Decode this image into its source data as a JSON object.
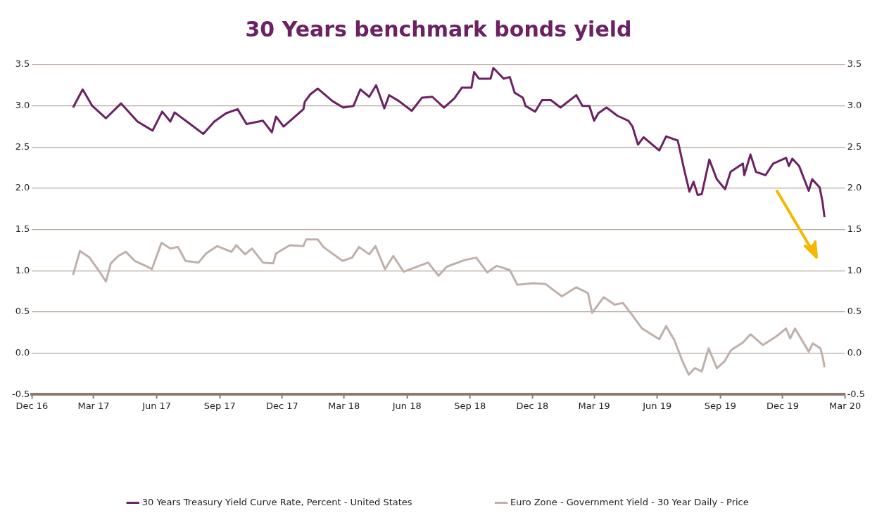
{
  "chart_data": {
    "type": "line",
    "title": "30 Years benchmark bonds yield",
    "xlim": [
      "2016-12-01",
      "2020-03-01"
    ],
    "xticks": [
      {
        "value": "2016-12-01",
        "label": "Dec 16"
      },
      {
        "value": "2017-03-01",
        "label": "Mar 17"
      },
      {
        "value": "2017-06-01",
        "label": "Jun 17"
      },
      {
        "value": "2017-09-01",
        "label": "Sep 17"
      },
      {
        "value": "2017-12-01",
        "label": "Dec 17"
      },
      {
        "value": "2018-03-01",
        "label": "Mar 18"
      },
      {
        "value": "2018-06-01",
        "label": "Jun 18"
      },
      {
        "value": "2018-09-01",
        "label": "Sep 18"
      },
      {
        "value": "2018-12-01",
        "label": "Dec 18"
      },
      {
        "value": "2019-03-01",
        "label": "Mar 19"
      },
      {
        "value": "2019-06-01",
        "label": "Jun 19"
      },
      {
        "value": "2019-09-01",
        "label": "Sep 19"
      },
      {
        "value": "2019-12-01",
        "label": "Dec 19"
      },
      {
        "value": "2020-03-01",
        "label": "Mar 20"
      }
    ],
    "ylim": [
      -0.5,
      3.5
    ],
    "yticks": [
      {
        "value": -0.5,
        "label": "-0.5"
      },
      {
        "value": 0,
        "label": "0.0"
      },
      {
        "value": 0.5,
        "label": "0.5"
      },
      {
        "value": 1,
        "label": "1.0"
      },
      {
        "value": 1.5,
        "label": "1.5"
      },
      {
        "value": 2,
        "label": "2.0"
      },
      {
        "value": 2.5,
        "label": "2.5"
      },
      {
        "value": 3,
        "label": "3.0"
      },
      {
        "value": 3.5,
        "label": "3.5"
      }
    ],
    "y2lim": [
      -0.5,
      3.5
    ],
    "y2ticks": [
      {
        "value": -0.5,
        "label": "-0.5"
      },
      {
        "value": 0,
        "label": "0.0"
      },
      {
        "value": 0.5,
        "label": "0.5"
      },
      {
        "value": 1,
        "label": "1.0"
      },
      {
        "value": 1.5,
        "label": "1.5"
      },
      {
        "value": 2,
        "label": "2.0"
      },
      {
        "value": 2.5,
        "label": "2.5"
      },
      {
        "value": 3,
        "label": "3.0"
      },
      {
        "value": 3.5,
        "label": "3.5"
      }
    ],
    "grid": "y",
    "legend": "bottom",
    "marker": "none",
    "line_style": "solid",
    "series": [
      {
        "name": "30 Years Treasury Yield Curve Rate, Percent - United States",
        "color": "#6b2163",
        "x": [
          "2017-01-30",
          "2017-02-13",
          "2017-02-27",
          "2017-03-19",
          "2017-04-10",
          "2017-05-04",
          "2017-05-26",
          "2017-06-09",
          "2017-06-21",
          "2017-06-27",
          "2017-07-15",
          "2017-08-08",
          "2017-08-24",
          "2017-09-10",
          "2017-09-27",
          "2017-10-10",
          "2017-11-03",
          "2017-11-16",
          "2017-11-22",
          "2017-12-03",
          "2018-01-01",
          "2018-01-03",
          "2018-01-11",
          "2018-01-22",
          "2018-02-12",
          "2018-02-28",
          "2018-03-15",
          "2018-03-25",
          "2018-04-07",
          "2018-04-17",
          "2018-04-29",
          "2018-05-06",
          "2018-05-20",
          "2018-06-08",
          "2018-06-23",
          "2018-07-08",
          "2018-07-25",
          "2018-08-09",
          "2018-08-20",
          "2018-09-03",
          "2018-09-07",
          "2018-09-14",
          "2018-10-01",
          "2018-10-05",
          "2018-10-20",
          "2018-10-29",
          "2018-11-05",
          "2018-11-17",
          "2018-11-21",
          "2018-12-05",
          "2018-12-15",
          "2018-12-28",
          "2019-01-11",
          "2019-02-03",
          "2019-02-12",
          "2019-02-22",
          "2019-03-01",
          "2019-03-07",
          "2019-03-19",
          "2019-04-04",
          "2019-04-20",
          "2019-04-26",
          "2019-05-04",
          "2019-05-12",
          "2019-06-04",
          "2019-06-14",
          "2019-07-01",
          "2019-07-10",
          "2019-07-18",
          "2019-07-24",
          "2019-07-30",
          "2019-08-05",
          "2019-08-16",
          "2019-08-27",
          "2019-09-08",
          "2019-09-16",
          "2019-10-04",
          "2019-10-06",
          "2019-10-15",
          "2019-10-23",
          "2019-11-06",
          "2019-11-17",
          "2019-12-06",
          "2019-12-10",
          "2019-12-15",
          "2019-12-25",
          "2020-01-08",
          "2020-01-13",
          "2020-01-24",
          "2020-01-28",
          "2020-01-31"
        ],
        "values": [
          2.98,
          3.2,
          3.0,
          2.85,
          3.03,
          2.81,
          2.7,
          2.93,
          2.81,
          2.92,
          2.81,
          2.66,
          2.81,
          2.91,
          2.96,
          2.78,
          2.82,
          2.68,
          2.87,
          2.75,
          2.96,
          3.05,
          3.14,
          3.21,
          3.06,
          2.98,
          3.0,
          3.2,
          3.11,
          3.25,
          2.97,
          3.13,
          3.06,
          2.94,
          3.1,
          3.11,
          2.98,
          3.09,
          3.22,
          3.22,
          3.41,
          3.33,
          3.33,
          3.46,
          3.33,
          3.35,
          3.16,
          3.1,
          3.0,
          2.93,
          3.07,
          3.07,
          2.98,
          3.13,
          3.0,
          3.0,
          2.82,
          2.91,
          2.98,
          2.88,
          2.82,
          2.75,
          2.53,
          2.62,
          2.46,
          2.63,
          2.58,
          2.24,
          1.96,
          2.08,
          1.92,
          1.93,
          2.35,
          2.11,
          1.99,
          2.2,
          2.3,
          2.16,
          2.41,
          2.2,
          2.16,
          2.3,
          2.37,
          2.27,
          2.36,
          2.27,
          1.97,
          2.11,
          2.01,
          1.84,
          1.65
        ]
      },
      {
        "name": "Euro Zone - Government Yield - 30 Year Daily - Price",
        "color": "#bfb1aa",
        "x": [
          "2017-01-30",
          "2017-02-09",
          "2017-02-23",
          "2017-03-07",
          "2017-03-19",
          "2017-03-26",
          "2017-04-06",
          "2017-04-17",
          "2017-04-30",
          "2017-05-16",
          "2017-05-25",
          "2017-06-08",
          "2017-06-21",
          "2017-07-02",
          "2017-07-13",
          "2017-08-01",
          "2017-08-12",
          "2017-08-28",
          "2017-09-18",
          "2017-09-25",
          "2017-10-08",
          "2017-10-18",
          "2017-11-03",
          "2017-11-18",
          "2017-11-22",
          "2017-12-12",
          "2018-01-01",
          "2018-01-05",
          "2018-01-22",
          "2018-01-30",
          "2018-02-27",
          "2018-03-13",
          "2018-03-23",
          "2018-04-07",
          "2018-04-16",
          "2018-04-30",
          "2018-05-12",
          "2018-05-27",
          "2018-07-02",
          "2018-07-17",
          "2018-07-29",
          "2018-08-24",
          "2018-09-10",
          "2018-09-26",
          "2018-10-10",
          "2018-10-29",
          "2018-11-09",
          "2018-12-03",
          "2018-12-20",
          "2019-01-13",
          "2019-02-03",
          "2019-02-20",
          "2019-02-26",
          "2019-03-15",
          "2019-03-31",
          "2019-04-12",
          "2019-04-24",
          "2019-05-10",
          "2019-06-04",
          "2019-06-14",
          "2019-06-26",
          "2019-07-08",
          "2019-07-17",
          "2019-07-26",
          "2019-08-05",
          "2019-08-15",
          "2019-08-27",
          "2019-09-07",
          "2019-09-17",
          "2019-10-04",
          "2019-10-15",
          "2019-11-02",
          "2019-11-21",
          "2019-12-06",
          "2019-12-12",
          "2019-12-19",
          "2020-01-08",
          "2020-01-14",
          "2020-01-25",
          "2020-01-29",
          "2020-01-31"
        ],
        "values": [
          0.95,
          1.24,
          1.16,
          1.02,
          0.87,
          1.09,
          1.18,
          1.23,
          1.12,
          1.06,
          1.02,
          1.34,
          1.27,
          1.29,
          1.12,
          1.1,
          1.21,
          1.3,
          1.23,
          1.31,
          1.2,
          1.27,
          1.1,
          1.09,
          1.21,
          1.31,
          1.3,
          1.38,
          1.38,
          1.29,
          1.12,
          1.16,
          1.29,
          1.2,
          1.3,
          1.02,
          1.18,
          0.99,
          1.1,
          0.94,
          1.05,
          1.13,
          1.16,
          0.98,
          1.06,
          1.01,
          0.83,
          0.85,
          0.84,
          0.69,
          0.8,
          0.73,
          0.49,
          0.68,
          0.59,
          0.61,
          0.48,
          0.3,
          0.17,
          0.33,
          0.16,
          -0.1,
          -0.26,
          -0.18,
          -0.22,
          0.06,
          -0.18,
          -0.1,
          0.04,
          0.13,
          0.23,
          0.1,
          0.2,
          0.3,
          0.18,
          0.3,
          0.02,
          0.12,
          0.06,
          -0.07,
          -0.17
        ]
      }
    ]
  }
}
